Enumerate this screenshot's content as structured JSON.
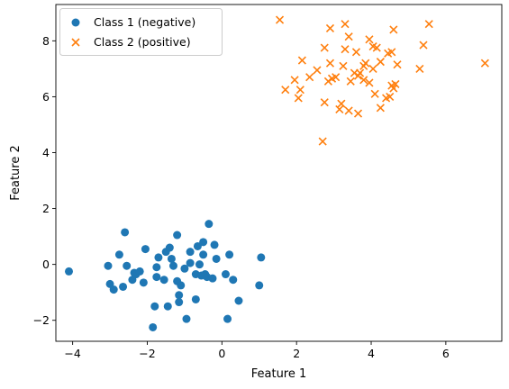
{
  "chart_data": {
    "type": "scatter",
    "title": "",
    "xlabel": "Feature 1",
    "ylabel": "Feature 2",
    "xlim": [
      -4.45,
      7.5
    ],
    "ylim": [
      -2.75,
      9.3
    ],
    "xticks": [
      -4,
      -2,
      0,
      2,
      4,
      6
    ],
    "yticks": [
      -2,
      0,
      2,
      4,
      6,
      8
    ],
    "xtick_labels": [
      "−4",
      "−2",
      "0",
      "2",
      "4",
      "6"
    ],
    "ytick_labels": [
      "−2",
      "0",
      "2",
      "4",
      "6",
      "8"
    ],
    "grid": false,
    "legend_position": "top-left",
    "series": [
      {
        "name": "Class 1 (negative)",
        "marker": "circle",
        "color": "#1f77b4",
        "points": [
          [
            -4.1,
            -0.25
          ],
          [
            -3.05,
            -0.05
          ],
          [
            -3.0,
            -0.7
          ],
          [
            -2.9,
            -0.9
          ],
          [
            -2.75,
            0.35
          ],
          [
            -2.65,
            -0.8
          ],
          [
            -2.6,
            1.15
          ],
          [
            -2.55,
            -0.05
          ],
          [
            -2.4,
            -0.55
          ],
          [
            -2.35,
            -0.3
          ],
          [
            -2.3,
            -0.35
          ],
          [
            -2.2,
            -0.25
          ],
          [
            -2.1,
            -0.65
          ],
          [
            -2.05,
            0.55
          ],
          [
            -1.85,
            -2.25
          ],
          [
            -1.8,
            -1.5
          ],
          [
            -1.75,
            -0.1
          ],
          [
            -1.7,
            0.25
          ],
          [
            -1.5,
            0.45
          ],
          [
            -1.45,
            -1.5
          ],
          [
            -1.4,
            0.6
          ],
          [
            -1.35,
            0.2
          ],
          [
            -1.3,
            -0.05
          ],
          [
            -1.2,
            1.05
          ],
          [
            -1.2,
            -0.6
          ],
          [
            -1.15,
            -1.1
          ],
          [
            -1.15,
            -1.35
          ],
          [
            -1.1,
            -0.75
          ],
          [
            -1.0,
            -0.15
          ],
          [
            -0.95,
            -1.95
          ],
          [
            -0.85,
            0.45
          ],
          [
            -0.7,
            -0.35
          ],
          [
            -0.7,
            -1.25
          ],
          [
            -0.65,
            0.65
          ],
          [
            -0.55,
            -0.4
          ],
          [
            -0.5,
            0.35
          ],
          [
            -0.5,
            0.8
          ],
          [
            -0.45,
            -0.35
          ],
          [
            -0.4,
            -0.45
          ],
          [
            -0.35,
            1.45
          ],
          [
            -0.2,
            0.7
          ],
          [
            -0.15,
            0.2
          ],
          [
            0.1,
            -0.35
          ],
          [
            0.15,
            -1.95
          ],
          [
            0.2,
            0.35
          ],
          [
            0.3,
            -0.55
          ],
          [
            0.45,
            -1.3
          ],
          [
            1.05,
            0.25
          ],
          [
            1.0,
            -0.75
          ],
          [
            -0.6,
            0.0
          ],
          [
            -1.55,
            -0.55
          ],
          [
            -0.85,
            0.05
          ],
          [
            -0.25,
            -0.5
          ],
          [
            -1.75,
            -0.45
          ]
        ]
      },
      {
        "name": "Class 2 (positive)",
        "marker": "x",
        "color": "#ff7f0e",
        "points": [
          [
            1.55,
            8.75
          ],
          [
            1.7,
            6.25
          ],
          [
            1.95,
            6.6
          ],
          [
            2.05,
            5.95
          ],
          [
            2.1,
            6.25
          ],
          [
            2.15,
            7.3
          ],
          [
            2.35,
            6.7
          ],
          [
            2.55,
            6.95
          ],
          [
            2.7,
            4.4
          ],
          [
            2.75,
            7.75
          ],
          [
            2.75,
            5.8
          ],
          [
            2.85,
            6.55
          ],
          [
            2.9,
            8.45
          ],
          [
            2.9,
            7.2
          ],
          [
            2.95,
            6.65
          ],
          [
            3.05,
            6.7
          ],
          [
            3.15,
            5.55
          ],
          [
            3.2,
            5.75
          ],
          [
            3.25,
            7.1
          ],
          [
            3.3,
            7.7
          ],
          [
            3.3,
            8.6
          ],
          [
            3.4,
            8.15
          ],
          [
            3.4,
            5.5
          ],
          [
            3.45,
            6.55
          ],
          [
            3.55,
            6.85
          ],
          [
            3.6,
            7.6
          ],
          [
            3.65,
            5.4
          ],
          [
            3.65,
            6.75
          ],
          [
            3.7,
            6.85
          ],
          [
            3.8,
            6.6
          ],
          [
            3.8,
            7.1
          ],
          [
            3.95,
            8.05
          ],
          [
            3.95,
            6.5
          ],
          [
            4.05,
            7.8
          ],
          [
            4.1,
            6.1
          ],
          [
            4.15,
            7.75
          ],
          [
            4.25,
            7.25
          ],
          [
            4.25,
            5.6
          ],
          [
            4.45,
            7.55
          ],
          [
            4.55,
            7.6
          ],
          [
            4.55,
            6.4
          ],
          [
            4.6,
            8.4
          ],
          [
            4.6,
            6.3
          ],
          [
            4.65,
            6.45
          ],
          [
            4.7,
            7.15
          ],
          [
            4.5,
            6.0
          ],
          [
            5.3,
            7.0
          ],
          [
            5.4,
            7.85
          ],
          [
            5.55,
            8.6
          ],
          [
            7.05,
            7.2
          ],
          [
            4.05,
            7.0
          ],
          [
            3.85,
            7.2
          ],
          [
            4.4,
            5.95
          ]
        ]
      }
    ]
  }
}
